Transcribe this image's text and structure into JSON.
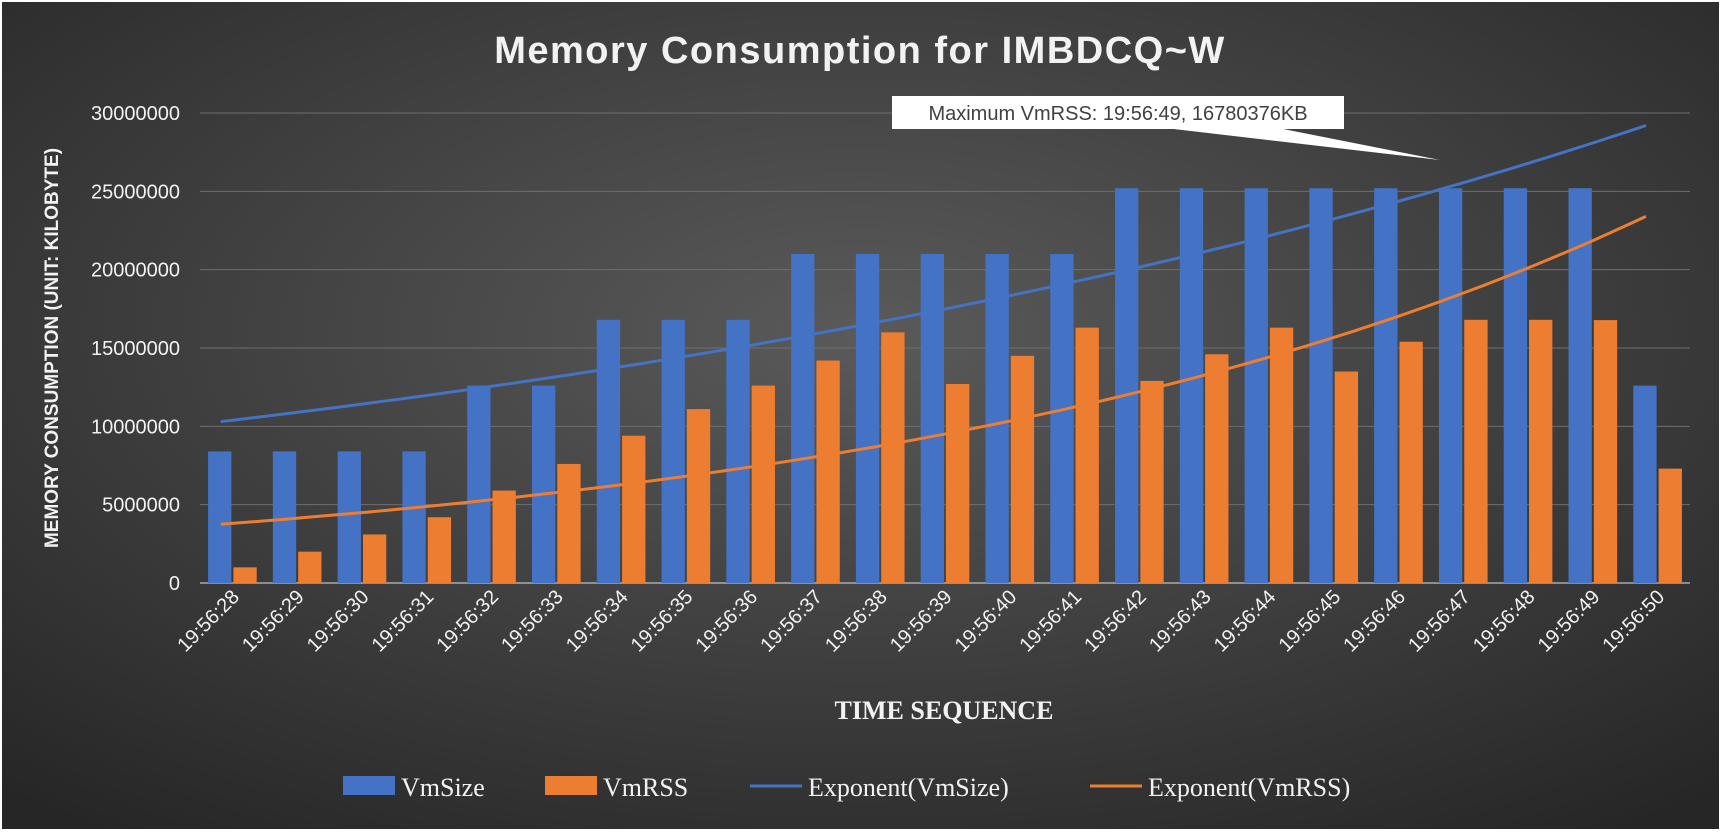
{
  "chart_data": {
    "type": "bar",
    "title": "Memory Consumption for IMBDCQ~W",
    "xlabel": "TIME SEQUENCE",
    "ylabel": "MEMORY CONSUMPTION (UNIT: KILOBYTE)",
    "ylim": [
      0,
      30000000
    ],
    "yticks": [
      "0",
      "5000000",
      "10000000",
      "15000000",
      "20000000",
      "25000000",
      "30000000"
    ],
    "grid": true,
    "legend_position": "bottom",
    "categories": [
      "19:56:28",
      "19:56:29",
      "19:56:30",
      "19:56:31",
      "19:56:32",
      "19:56:33",
      "19:56:34",
      "19:56:35",
      "19:56:36",
      "19:56:37",
      "19:56:38",
      "19:56:39",
      "19:56:40",
      "19:56:41",
      "19:56:42",
      "19:56:43",
      "19:56:44",
      "19:56:45",
      "19:56:46",
      "19:56:47",
      "19:56:48",
      "19:56:49",
      "19:56:50"
    ],
    "series": [
      {
        "name": "VmSize",
        "kind": "bar",
        "color": "#4472C4",
        "values": [
          8400000,
          8400000,
          8400000,
          8400000,
          12600000,
          12600000,
          16800000,
          16800000,
          16800000,
          21000000,
          21000000,
          21000000,
          21000000,
          21000000,
          25200000,
          25200000,
          25200000,
          25200000,
          25200000,
          25200000,
          25200000,
          25200000,
          12600000
        ]
      },
      {
        "name": "VmRSS",
        "kind": "bar",
        "color": "#ED7D31",
        "values": [
          1000000,
          2000000,
          3100000,
          4200000,
          5900000,
          7600000,
          9400000,
          11100000,
          12600000,
          14200000,
          16000000,
          12700000,
          14500000,
          16300000,
          12900000,
          14600000,
          16300000,
          13500000,
          15400000,
          16800000,
          16800000,
          16780376,
          7300000
        ]
      }
    ],
    "trendlines": [
      {
        "name": "Exponent(VmSize)",
        "color": "#4472C4",
        "start": 10300000,
        "end": 29200000
      },
      {
        "name": "Exponent(VmRSS)",
        "color": "#ED7D31",
        "start": 3750000,
        "end": 23400000
      }
    ],
    "annotation": {
      "text": "Maximum VmRSS: 19:56:49, 16780376KB",
      "target_category": "19:56:47",
      "target_value": 27000000
    }
  }
}
